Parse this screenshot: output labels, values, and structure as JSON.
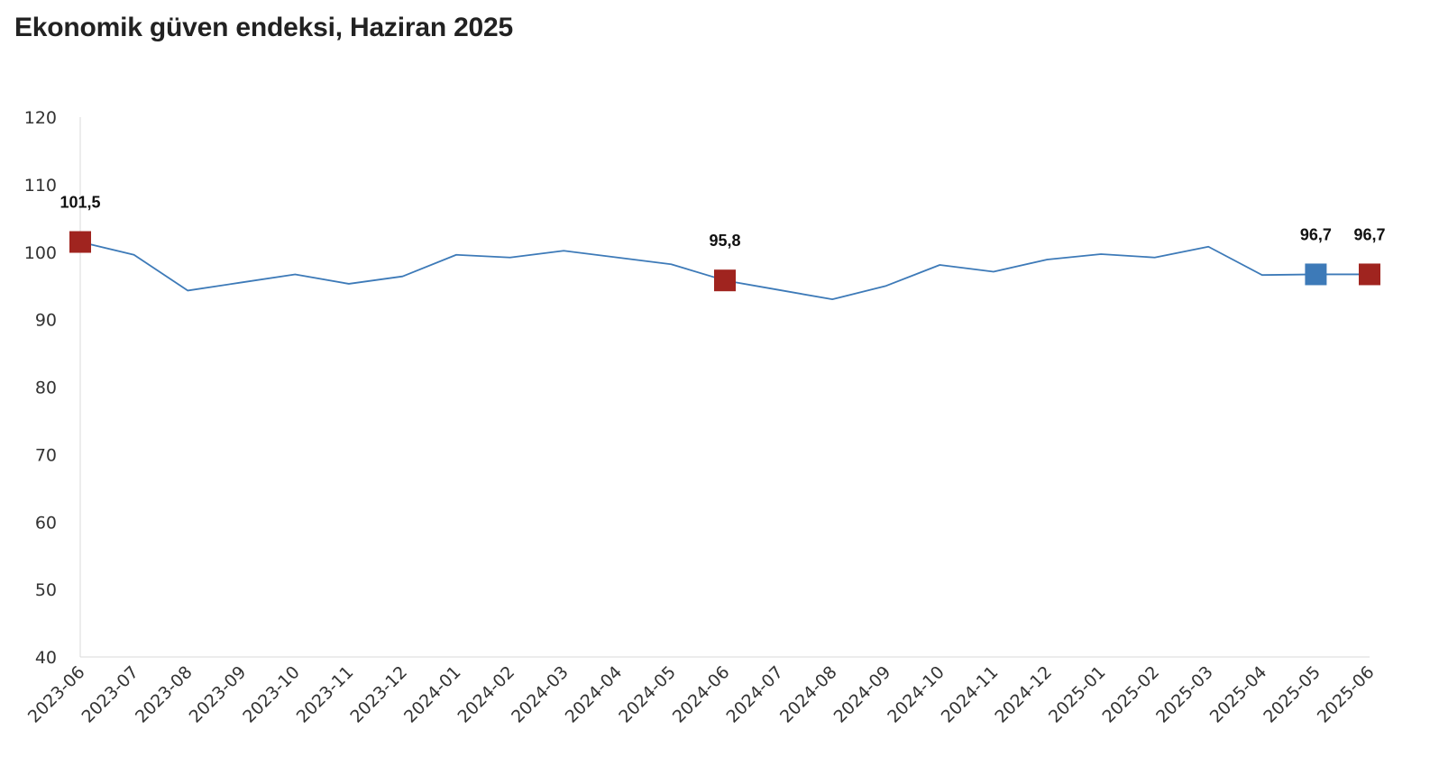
{
  "chart_data": {
    "type": "line",
    "title": "Ekonomik güven endeksi, Haziran 2025",
    "xlabel": "",
    "ylabel": "",
    "ylim": [
      40,
      120
    ],
    "yticks": [
      "120",
      "110",
      "100",
      "90",
      "80",
      "70",
      "60",
      "50",
      "40"
    ],
    "grid": false,
    "legend": "none",
    "categories": [
      "2023-06",
      "2023-07",
      "2023-08",
      "2023-09",
      "2023-10",
      "2023-11",
      "2023-12",
      "2024-01",
      "2024-02",
      "2024-03",
      "2024-04",
      "2024-05",
      "2024-06",
      "2024-07",
      "2024-08",
      "2024-09",
      "2024-10",
      "2024-11",
      "2024-12",
      "2025-01",
      "2025-02",
      "2025-03",
      "2025-04",
      "2025-05",
      "2025-06"
    ],
    "series": [
      {
        "values": [
          101.5,
          99.6,
          94.3,
          95.5,
          96.7,
          95.3,
          96.4,
          99.6,
          99.2,
          100.2,
          99.2,
          98.2,
          95.8,
          94.4,
          93.0,
          95.0,
          98.1,
          97.1,
          98.9,
          99.7,
          99.2,
          100.8,
          96.6,
          96.7,
          96.7
        ],
        "color": "#3d7ab8"
      }
    ],
    "highlighted_points": [
      {
        "index": 0,
        "label": "101,5",
        "color": "#a0241f"
      },
      {
        "index": 12,
        "label": "95,8",
        "color": "#a0241f"
      },
      {
        "index": 23,
        "label": "96,7",
        "color": "#3d7ab8"
      },
      {
        "index": 24,
        "label": "96,7",
        "color": "#a0241f"
      }
    ],
    "axis_color": "#d9d9d9"
  }
}
